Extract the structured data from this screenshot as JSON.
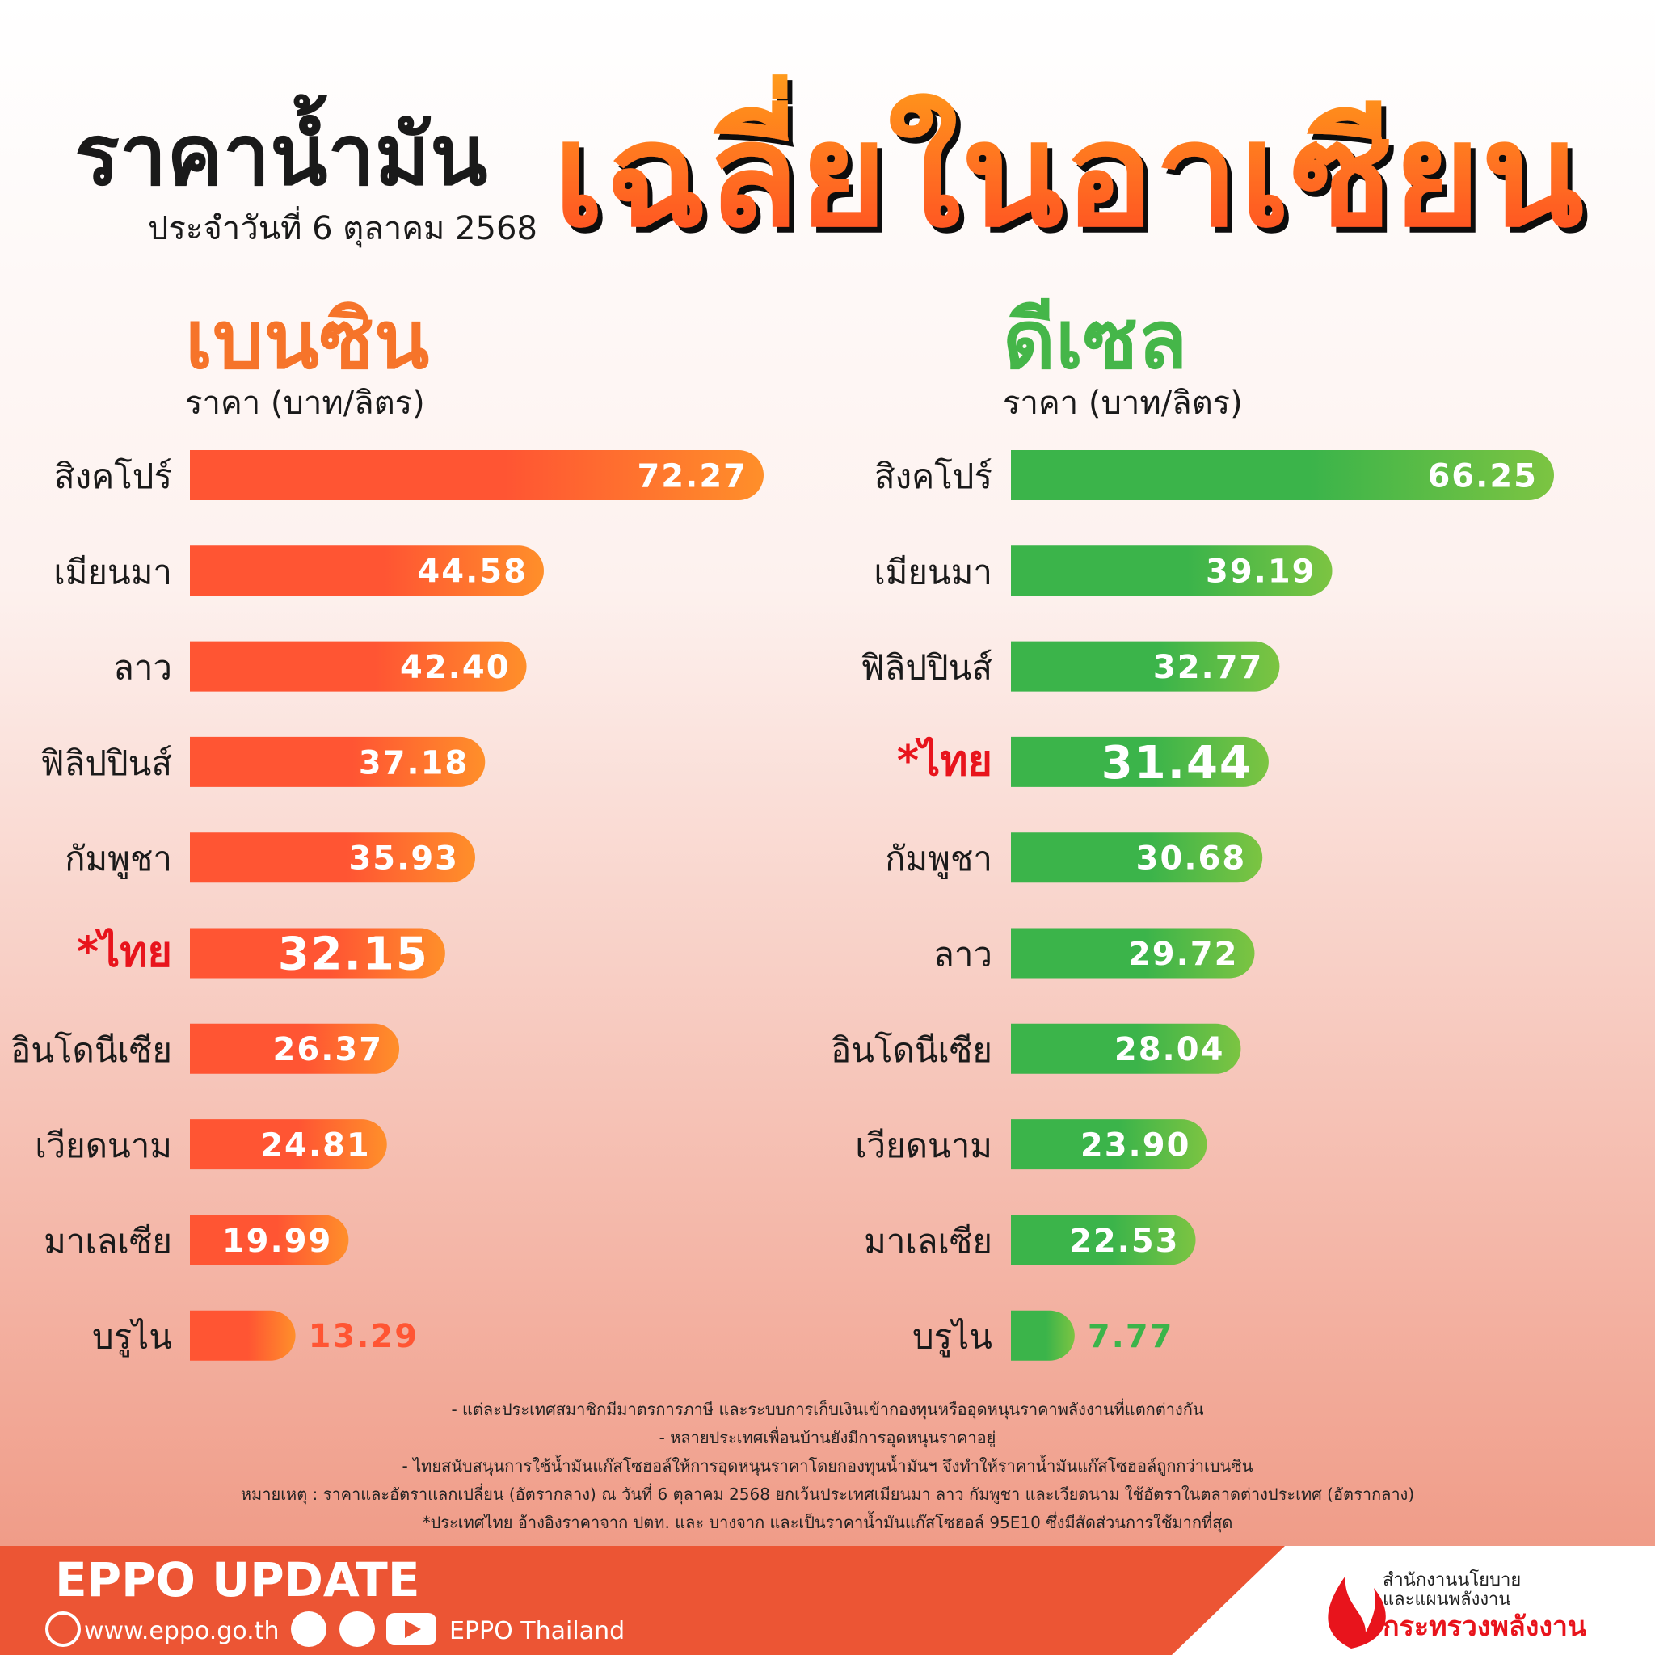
{
  "header": {
    "title_1": "ราคาน้ำมัน",
    "title_2": "เฉลี่ยในอาเซียน",
    "date": "ประจำวันที่   6 ตุลาคม 2568"
  },
  "chart_data": [
    {
      "type": "bar",
      "orientation": "horizontal",
      "title": "เบนซิน",
      "subtitle": "ราคา (บาท/ลิตร)",
      "categories": [
        "สิงคโปร์",
        "เมียนมา",
        "ลาว",
        "ฟิลิปปินส์",
        "กัมพูชา",
        "*ไทย",
        "อินโดนีเซีย",
        "เวียดนาม",
        "มาเลเซีย",
        "บรูไน"
      ],
      "values": [
        72.27,
        44.58,
        42.4,
        37.18,
        35.93,
        32.15,
        26.37,
        24.81,
        19.99,
        13.29
      ],
      "value_labels": [
        "72.27",
        "44.58",
        "42.40",
        "37.18",
        "35.93",
        "32.15",
        "26.37",
        "24.81",
        "19.99",
        "13.29"
      ],
      "color": "#ff5533",
      "color_end": "#ff8f2a",
      "title_color": "#f6742a",
      "highlight_index": 5,
      "highlight_color": "#e8141c"
    },
    {
      "type": "bar",
      "orientation": "horizontal",
      "title": "ดีเซล",
      "subtitle": "ราคา (บาท/ลิตร)",
      "categories": [
        "สิงคโปร์",
        "เมียนมา",
        "ฟิลิปปินส์",
        "*ไทย",
        "กัมพูชา",
        "ลาว",
        "อินโดนีเซีย",
        "เวียดนาม",
        "มาเลเซีย",
        "บรูไน"
      ],
      "values": [
        66.25,
        39.19,
        32.77,
        31.44,
        30.68,
        29.72,
        28.04,
        23.9,
        22.53,
        7.77
      ],
      "value_labels": [
        "66.25",
        "39.19",
        "32.77",
        "31.44",
        "30.68",
        "29.72",
        "28.04",
        "23.90",
        "22.53",
        "7.77"
      ],
      "color": "#3bb44a",
      "color_end": "#7cc442",
      "title_color": "#45b649",
      "highlight_index": 3,
      "highlight_color": "#e8141c"
    }
  ],
  "notes": [
    "- แต่ละประเทศสมาชิกมีมาตรการภาษี และระบบการเก็บเงินเข้ากองทุนหรืออุดหนุนราคาพลังงานที่แตกต่างกัน",
    "- หลายประเทศเพื่อนบ้านยังมีการอุดหนุนราคาอยู่",
    "- ไทยสนับสนุนการใช้น้ำมันแก๊สโซฮอล์ให้การอุดหนุนราคาโดยกองทุนน้ำมันฯ จึงทำให้ราคาน้ำมันแก๊สโซฮอล์ถูกกว่าเบนซิน",
    "หมายเหตุ : ราคาและอัตราแลกเปลี่ยน (อัตรากลาง) ณ วันที่ 6 ตุลาคม 2568 ยกเว้นประเทศเมียนมา ลาว กัมพูชา และเวียดนาม ใช้อัตราในตลาดต่างประเทศ (อัตรากลาง)",
    "*ประเทศไทย อ้างอิงราคาจาก ปตท. และ บางจาก และเป็นราคาน้ำมันแก๊สโซฮอล์ 95E10 ซึ่งมีสัดส่วนการใช้มากที่สุด"
  ],
  "footer": {
    "brand": "EPPO UPDATE",
    "website": "www.eppo.go.th",
    "social": "EPPO Thailand",
    "org_1": "สำนักงานนโยบาย",
    "org_2": "และแผนพลังงาน",
    "org_3": "กระทรวงพลังงาน"
  }
}
